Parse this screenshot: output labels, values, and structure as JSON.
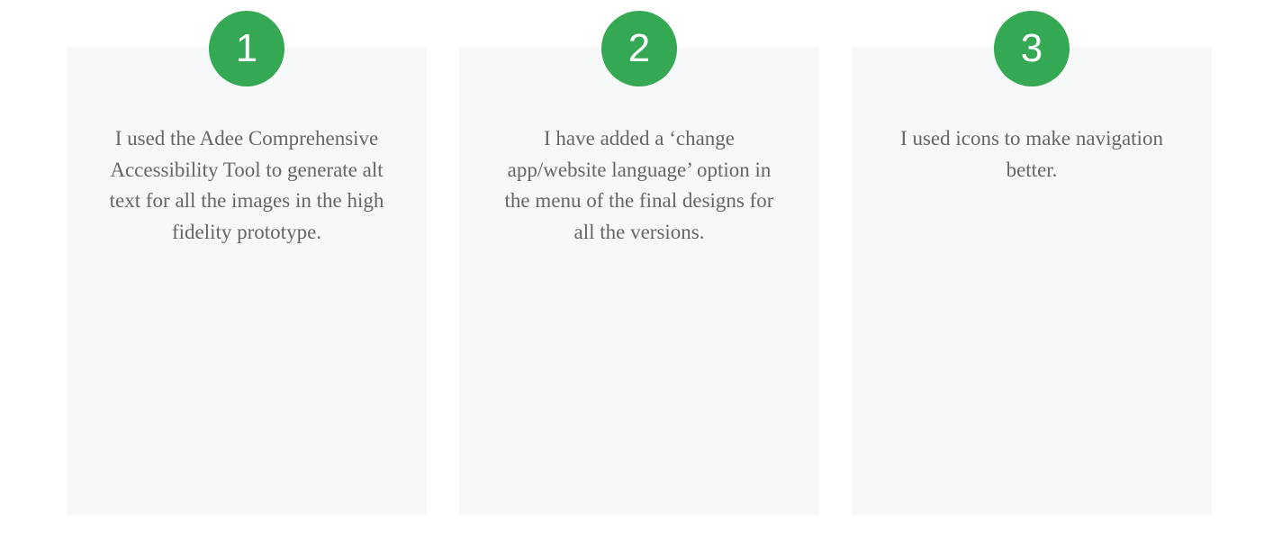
{
  "steps": [
    {
      "number": "1",
      "text": "I used the Adee Comprehensive Accessibility Tool to generate alt text for all the images in the high fidelity prototype."
    },
    {
      "number": "2",
      "text": "I have added a ‘change app/website language’ option in the menu of the final designs for all the versions."
    },
    {
      "number": "3",
      "text": "I used icons to make navigation better."
    }
  ],
  "colors": {
    "badge": "#34a853",
    "card_background": "#f7f8fa",
    "text": "#666666"
  }
}
